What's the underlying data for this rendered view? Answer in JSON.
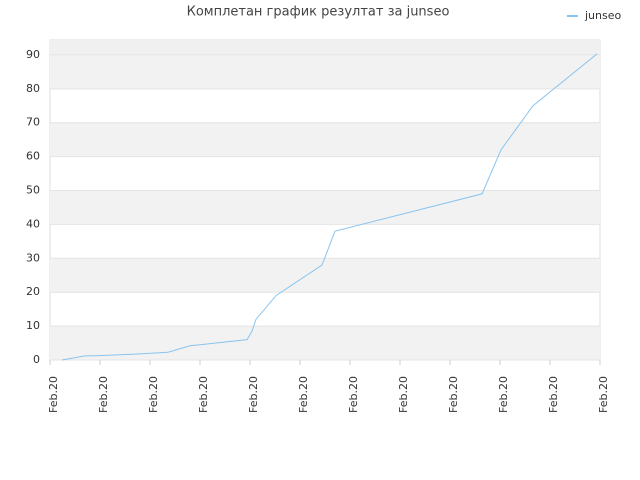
{
  "chart_data": {
    "type": "line",
    "title": "Комплетан график резултат за junseo",
    "x": [
      0.24,
      0.7,
      1.0,
      1.8,
      2.36,
      2.8,
      3.0,
      3.94,
      4.04,
      4.12,
      4.52,
      5.44,
      5.7,
      8.64,
      9.02,
      9.66,
      10.94
    ],
    "series": [
      {
        "name": "junseo",
        "color": "#88c4f0",
        "values": [
          0,
          1.2,
          1.3,
          1.8,
          2.3,
          4.2,
          4.5,
          6,
          8.5,
          12,
          19,
          28,
          38,
          49,
          62,
          75,
          90.3
        ]
      }
    ],
    "xlim": [
      0,
      11
    ],
    "xticks": [
      {
        "value": 0,
        "label": "Feb.20"
      },
      {
        "value": 1,
        "label": "Feb.20"
      },
      {
        "value": 2,
        "label": "Feb.20"
      },
      {
        "value": 3,
        "label": "Feb.20"
      },
      {
        "value": 4,
        "label": "Feb.20"
      },
      {
        "value": 5,
        "label": "Feb.20"
      },
      {
        "value": 6,
        "label": "Feb.20"
      },
      {
        "value": 7,
        "label": "Feb.20"
      },
      {
        "value": 8,
        "label": "Feb.20"
      },
      {
        "value": 9,
        "label": "Feb.20"
      },
      {
        "value": 10,
        "label": "Feb.20"
      },
      {
        "value": 11,
        "label": "Feb.20"
      }
    ],
    "ylim": [
      0,
      94.4
    ],
    "yticks": [
      0,
      10,
      20,
      30,
      40,
      50,
      60,
      70,
      80,
      90
    ],
    "grid": true,
    "legend": "top-right"
  }
}
